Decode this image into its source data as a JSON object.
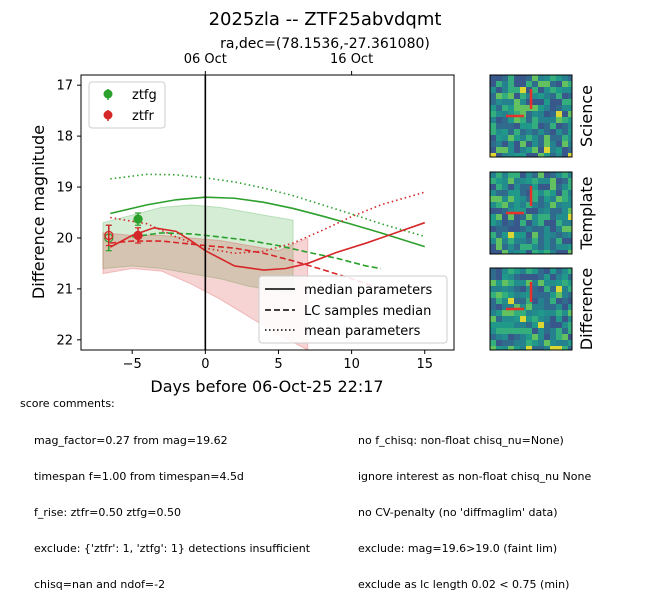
{
  "title": "2025zla -- ZTF25abvdqmt",
  "subtitle": "ra,dec=(78.1536,-27.361080)",
  "chart_data": {
    "type": "line",
    "xlabel": "Days before 06-Oct-25 22:17",
    "ylabel": "Difference magnitude",
    "xlim": [
      -8.5,
      17
    ],
    "ylim": [
      22.2,
      16.8
    ],
    "y_inverted": true,
    "grid": false,
    "xticks": [
      -5,
      0,
      5,
      10,
      15
    ],
    "yticks": [
      17,
      18,
      19,
      20,
      21,
      22
    ],
    "top_ticks": [
      {
        "x": 0,
        "label": "06 Oct"
      },
      {
        "x": 10,
        "label": "16 Oct"
      }
    ],
    "reference_line_x": 0,
    "colors": {
      "ztfg": "#2ca02c",
      "ztfr": "#d62728"
    },
    "points": [
      {
        "name": "ztfg",
        "x": -6.6,
        "y": 20.0,
        "err": 0.25,
        "filled": false
      },
      {
        "name": "ztfg",
        "x": -4.6,
        "y": 19.63,
        "err": 0.12,
        "filled": true
      },
      {
        "name": "ztfr",
        "x": -6.6,
        "y": 19.95,
        "err": 0.2,
        "filled": false
      },
      {
        "name": "ztfr",
        "x": -4.6,
        "y": 19.95,
        "err": 0.15,
        "filled": true
      }
    ],
    "bands": [
      {
        "name": "ztfg",
        "x": [
          -7,
          -5,
          -3,
          -1,
          1,
          3,
          5,
          6
        ],
        "lo": [
          19.7,
          19.55,
          19.4,
          19.35,
          19.4,
          19.5,
          19.6,
          19.65
        ],
        "hi": [
          20.6,
          20.55,
          20.6,
          20.7,
          20.8,
          20.95,
          21.05,
          21.1
        ]
      },
      {
        "name": "ztfr",
        "x": [
          -7,
          -5,
          -3,
          -1,
          1,
          3,
          5,
          7
        ],
        "lo": [
          19.9,
          19.95,
          19.95,
          20.0,
          20.05,
          20.15,
          20.25,
          20.0
        ],
        "hi": [
          20.7,
          20.6,
          20.65,
          20.9,
          21.2,
          21.55,
          21.9,
          22.2
        ]
      }
    ],
    "series": [
      {
        "name": "ztfg",
        "style": "median parameters",
        "x": [
          -6.5,
          -4,
          -2,
          0,
          2,
          4,
          6,
          8,
          10,
          12,
          15
        ],
        "y": [
          19.52,
          19.35,
          19.25,
          19.2,
          19.22,
          19.3,
          19.42,
          19.57,
          19.73,
          19.9,
          20.17
        ]
      },
      {
        "name": "ztfg",
        "style": "LC samples median",
        "x": [
          -5,
          -3,
          -1,
          1,
          3,
          5,
          7,
          9,
          11,
          12
        ],
        "y": [
          19.98,
          19.9,
          19.92,
          19.98,
          20.05,
          20.15,
          20.28,
          20.4,
          20.55,
          20.6
        ]
      },
      {
        "name": "ztfg",
        "style": "mean parameters",
        "x": [
          -6.5,
          -4,
          -2,
          0,
          2,
          4,
          6,
          8,
          10,
          12,
          15
        ],
        "y": [
          18.84,
          18.75,
          18.76,
          18.82,
          18.9,
          19.02,
          19.17,
          19.35,
          19.53,
          19.72,
          19.97
        ]
      },
      {
        "name": "ztfr",
        "style": "median parameters",
        "x": [
          -6.5,
          -5,
          -3.5,
          -2,
          -1,
          0,
          2,
          4,
          5.5,
          7,
          9,
          11,
          13,
          15
        ],
        "y": [
          20.18,
          19.95,
          19.8,
          19.87,
          20.05,
          20.25,
          20.55,
          20.63,
          20.6,
          20.5,
          20.28,
          20.1,
          19.9,
          19.7
        ]
      },
      {
        "name": "ztfr",
        "style": "LC samples median",
        "x": [
          -6.5,
          -5,
          -3,
          -1,
          0,
          2,
          4,
          6,
          8,
          10,
          12
        ],
        "y": [
          20.1,
          20.06,
          20.06,
          20.12,
          20.15,
          20.2,
          20.3,
          20.45,
          20.62,
          20.8,
          21.0
        ]
      },
      {
        "name": "ztfr",
        "style": "mean parameters",
        "x": [
          -6.5,
          -4,
          -2,
          0,
          2,
          4,
          6,
          8,
          10,
          12,
          15
        ],
        "y": [
          19.6,
          19.72,
          19.98,
          20.2,
          20.3,
          20.26,
          20.1,
          19.85,
          19.58,
          19.35,
          19.1
        ]
      }
    ],
    "legend_points": [
      {
        "label": "ztfg",
        "color": "#2ca02c"
      },
      {
        "label": "ztfr",
        "color": "#d62728"
      }
    ],
    "legend_lines": [
      {
        "label": "median parameters",
        "dash": "solid"
      },
      {
        "label": "LC samples median",
        "dash": "dashed"
      },
      {
        "label": "mean parameters",
        "dash": "dotted"
      }
    ],
    "legend_points_location": "upper left",
    "legend_lines_location": "lower right"
  },
  "stamps": [
    {
      "label": "Science"
    },
    {
      "label": "Template"
    },
    {
      "label": "Difference"
    }
  ],
  "comments": {
    "header": "score comments:",
    "left": [
      "mag_factor=0.27 from mag=19.62",
      "timespan f=1.00 from timespan=4.5d",
      "f_rise: ztfr=0.50 ztfg=0.50",
      "exclude: {'ztfr': 1, 'ztfg': 1} detections insufficient",
      "chisq=nan and ndof=-2"
    ],
    "right": [
      "no f_chisq: non-float chisq_nu=None)",
      "ignore interest as non-float chisq_nu None",
      "no CV-penalty (no 'diffmaglim' data)",
      "exclude: mag=19.6>19.0 (faint lim)",
      "exclude as lc length 0.02 < 0.75 (min)"
    ]
  }
}
